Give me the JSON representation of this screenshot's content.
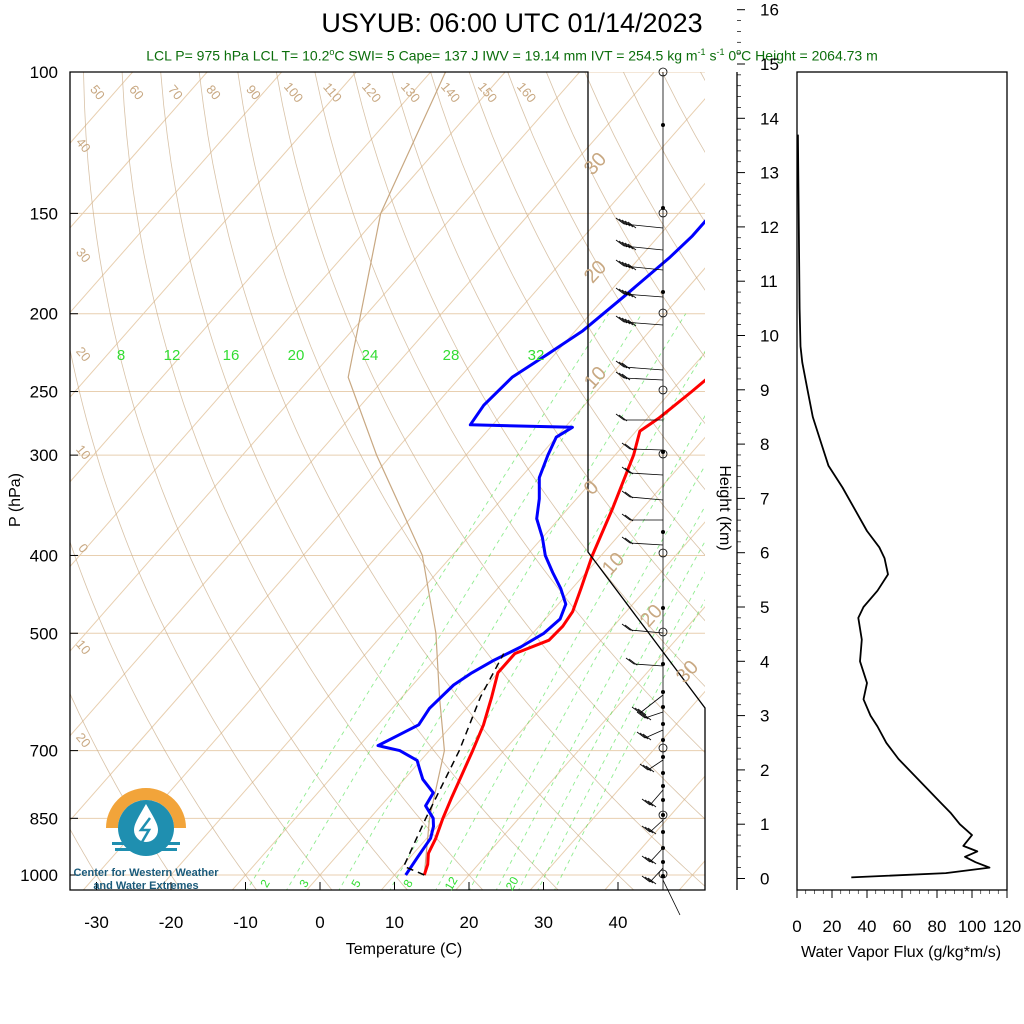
{
  "header": {
    "title": "USYUB: 06:00 UTC 01/14/2023",
    "subtitle_html": "LCL P= 975 hPa  LCL T= 10.2°C  SWI= 5  Cape= 137 J  IWV = 19.14 mm  IVT = 254.5 kg m⁻¹ s⁻¹  0°C Height = 2064.73 m"
  },
  "logo": {
    "line1": "Center for Western Weather",
    "line2": "and Water Extremes"
  },
  "colors": {
    "temperature": "#ff0000",
    "dewpoint": "#0000ff",
    "dry_adiabat": "#c8a882",
    "mixing_ratio": "#33dd33",
    "flux": "#000000"
  },
  "chart_data": [
    {
      "type": "line",
      "title": "USYUB: 06:00 UTC 01/14/2023",
      "xlabel": "Temperature (C)",
      "ylabel": "P (hPa)",
      "y_scale": "log",
      "xlim": [
        -35,
        50
      ],
      "ylim": [
        1050,
        100
      ],
      "x_ticks": [
        -30,
        -20,
        -10,
        0,
        10,
        20,
        30,
        40
      ],
      "y_ticks": [
        1000,
        850,
        700,
        500,
        400,
        300,
        250,
        200,
        150,
        100
      ],
      "mixing_ratio_labels_top": [
        8,
        12,
        16,
        20,
        24,
        28,
        32
      ],
      "mixing_ratio_labels_bottom": [
        2,
        3,
        5,
        8,
        12,
        20
      ],
      "dry_adiabat_labels": [
        50,
        60,
        70,
        80,
        90,
        100,
        110,
        120,
        130,
        140,
        150,
        160
      ],
      "isotherm_labels": [
        40,
        30,
        20,
        10,
        0,
        10,
        20
      ],
      "right_labels": [
        30,
        20,
        10,
        0,
        10,
        20,
        30
      ],
      "series": [
        {
          "name": "Temperature",
          "points": [
            {
              "p": 1000,
              "t": 14.0
            },
            {
              "p": 970,
              "t": 13.2
            },
            {
              "p": 940,
              "t": 12.0
            },
            {
              "p": 900,
              "t": 11.2
            },
            {
              "p": 850,
              "t": 9.8
            },
            {
              "p": 800,
              "t": 8.5
            },
            {
              "p": 750,
              "t": 7.2
            },
            {
              "p": 700,
              "t": 5.8
            },
            {
              "p": 650,
              "t": 4.2
            },
            {
              "p": 600,
              "t": 2.0
            },
            {
              "p": 560,
              "t": 0.0
            },
            {
              "p": 530,
              "t": 0.0
            },
            {
              "p": 510,
              "t": 3.0
            },
            {
              "p": 490,
              "t": 3.2
            },
            {
              "p": 470,
              "t": 2.8
            },
            {
              "p": 440,
              "t": 1.2
            },
            {
              "p": 400,
              "t": -1.2
            },
            {
              "p": 350,
              "t": -4.0
            },
            {
              "p": 300,
              "t": -7.5
            },
            {
              "p": 280,
              "t": -9.5
            },
            {
              "p": 270,
              "t": -8.5
            },
            {
              "p": 250,
              "t": -7.2
            },
            {
              "p": 230,
              "t": -6.0
            },
            {
              "p": 220,
              "t": -2.0
            },
            {
              "p": 210,
              "t": -1.0
            },
            {
              "p": 200,
              "t": 0.0
            },
            {
              "p": 185,
              "t": 1.5
            },
            {
              "p": 170,
              "t": 3.0
            },
            {
              "p": 160,
              "t": 4.5
            },
            {
              "p": 150,
              "t": 6.5
            }
          ]
        },
        {
          "name": "Dewpoint",
          "points": [
            {
              "p": 1000,
              "t": 11.5
            },
            {
              "p": 950,
              "t": 11.0
            },
            {
              "p": 900,
              "t": 10.5
            },
            {
              "p": 870,
              "t": 9.5
            },
            {
              "p": 850,
              "t": 8.5
            },
            {
              "p": 820,
              "t": 6.0
            },
            {
              "p": 790,
              "t": 5.5
            },
            {
              "p": 760,
              "t": 2.5
            },
            {
              "p": 740,
              "t": 1.0
            },
            {
              "p": 720,
              "t": -0.5
            },
            {
              "p": 700,
              "t": -4.0
            },
            {
              "p": 690,
              "t": -7.5
            },
            {
              "p": 670,
              "t": -6.0
            },
            {
              "p": 650,
              "t": -4.5
            },
            {
              "p": 620,
              "t": -5.0
            },
            {
              "p": 580,
              "t": -4.5
            },
            {
              "p": 560,
              "t": -3.5
            },
            {
              "p": 540,
              "t": -2.0
            },
            {
              "p": 520,
              "t": 0.0
            },
            {
              "p": 500,
              "t": 1.5
            },
            {
              "p": 480,
              "t": 2.0
            },
            {
              "p": 460,
              "t": 1.0
            },
            {
              "p": 440,
              "t": -1.5
            },
            {
              "p": 420,
              "t": -4.5
            },
            {
              "p": 400,
              "t": -7.5
            },
            {
              "p": 380,
              "t": -10.0
            },
            {
              "p": 360,
              "t": -13.0
            },
            {
              "p": 340,
              "t": -15.0
            },
            {
              "p": 320,
              "t": -17.5
            },
            {
              "p": 300,
              "t": -19.0
            },
            {
              "p": 285,
              "t": -20.0
            },
            {
              "p": 277,
              "t": -19.0
            },
            {
              "p": 275,
              "t": -33.0
            },
            {
              "p": 260,
              "t": -33.5
            },
            {
              "p": 240,
              "t": -33.0
            },
            {
              "p": 225,
              "t": -31.0
            },
            {
              "p": 210,
              "t": -29.0
            },
            {
              "p": 190,
              "t": -27.5
            },
            {
              "p": 170,
              "t": -26.0
            },
            {
              "p": 160,
              "t": -25.5
            },
            {
              "p": 150,
              "t": -25.5
            }
          ]
        },
        {
          "name": "Parcel",
          "points": [
            {
              "p": 1000,
              "t": 14.0
            },
            {
              "p": 975,
              "t": 10.2
            },
            {
              "p": 850,
              "t": 7.5
            },
            {
              "p": 700,
              "t": 4.0
            },
            {
              "p": 600,
              "t": 0.5
            },
            {
              "p": 530,
              "t": -1.5
            }
          ]
        }
      ]
    },
    {
      "type": "line",
      "xlabel": "Water Vapor Flux (g/kg*m/s)",
      "ylabel": "Height (Km)",
      "xlim": [
        0,
        120
      ],
      "ylim": [
        -0.25,
        16.5
      ],
      "x_ticks": [
        0,
        20,
        40,
        60,
        80,
        100,
        120
      ],
      "y_ticks": [
        0,
        1,
        2,
        3,
        4,
        5,
        6,
        7,
        8,
        9,
        10,
        11,
        12,
        13,
        14,
        15,
        16
      ],
      "series": [
        {
          "name": "Water Vapor Flux",
          "points": [
            {
              "h": 0.02,
              "f": 31
            },
            {
              "h": 0.1,
              "f": 85
            },
            {
              "h": 0.2,
              "f": 110
            },
            {
              "h": 0.3,
              "f": 102
            },
            {
              "h": 0.4,
              "f": 96
            },
            {
              "h": 0.5,
              "f": 103
            },
            {
              "h": 0.6,
              "f": 95
            },
            {
              "h": 0.8,
              "f": 100
            },
            {
              "h": 1.0,
              "f": 93
            },
            {
              "h": 1.2,
              "f": 88
            },
            {
              "h": 1.4,
              "f": 82
            },
            {
              "h": 1.6,
              "f": 76
            },
            {
              "h": 1.8,
              "f": 70
            },
            {
              "h": 2.0,
              "f": 64
            },
            {
              "h": 2.2,
              "f": 58
            },
            {
              "h": 2.5,
              "f": 51
            },
            {
              "h": 2.8,
              "f": 46
            },
            {
              "h": 3.0,
              "f": 42
            },
            {
              "h": 3.3,
              "f": 38
            },
            {
              "h": 3.6,
              "f": 40
            },
            {
              "h": 4.0,
              "f": 36
            },
            {
              "h": 4.4,
              "f": 37
            },
            {
              "h": 4.8,
              "f": 35
            },
            {
              "h": 5.0,
              "f": 38
            },
            {
              "h": 5.3,
              "f": 46
            },
            {
              "h": 5.6,
              "f": 52
            },
            {
              "h": 5.9,
              "f": 50
            },
            {
              "h": 6.1,
              "f": 47
            },
            {
              "h": 6.4,
              "f": 40
            },
            {
              "h": 6.8,
              "f": 33
            },
            {
              "h": 7.2,
              "f": 26
            },
            {
              "h": 7.6,
              "f": 18
            },
            {
              "h": 8.0,
              "f": 14
            },
            {
              "h": 8.5,
              "f": 9
            },
            {
              "h": 9.0,
              "f": 6
            },
            {
              "h": 9.5,
              "f": 3
            },
            {
              "h": 9.8,
              "f": 2
            },
            {
              "h": 10.5,
              "f": 1.5
            },
            {
              "h": 12,
              "f": 1
            },
            {
              "h": 13.7,
              "f": 0.5
            }
          ]
        }
      ]
    }
  ]
}
